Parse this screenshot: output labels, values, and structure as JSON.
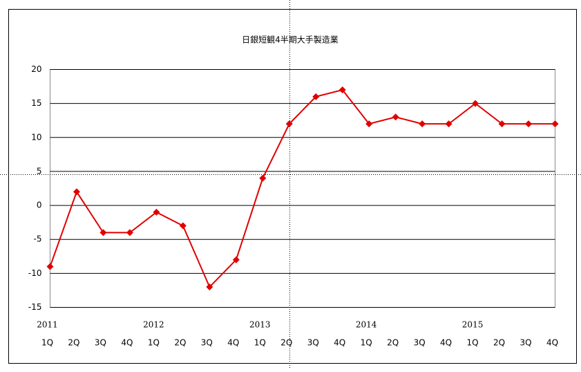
{
  "chart_data": {
    "type": "line",
    "title": "日銀短観4半期大手製造業",
    "categories": [
      "1Q",
      "2Q",
      "3Q",
      "4Q",
      "1Q",
      "2Q",
      "3Q",
      "4Q",
      "1Q",
      "2Q",
      "3Q",
      "4Q",
      "1Q",
      "2Q",
      "3Q",
      "4Q",
      "1Q",
      "2Q",
      "3Q",
      "4Q"
    ],
    "year_labels": [
      "2011",
      null,
      null,
      null,
      "2012",
      null,
      null,
      null,
      "2013",
      null,
      null,
      null,
      "2014",
      null,
      null,
      null,
      "2015",
      null,
      null,
      null
    ],
    "values": [
      -9,
      2,
      -4,
      -4,
      -1,
      -3,
      -12,
      -8,
      4,
      12,
      16,
      17,
      12,
      13,
      12,
      12,
      15,
      12,
      12,
      12
    ],
    "color": "#e00000",
    "ylim": [
      -15,
      20
    ],
    "yticks": [
      -15,
      -10,
      -5,
      0,
      5,
      10,
      15,
      20
    ],
    "grid": true
  }
}
